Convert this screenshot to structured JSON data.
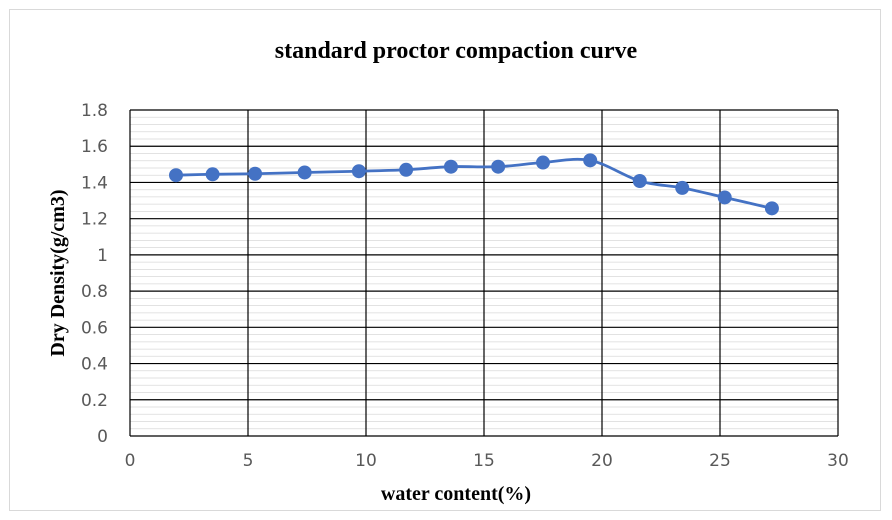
{
  "chart_data": {
    "type": "scatter",
    "title": "standard proctor compaction curve",
    "xlabel": "water content(%)",
    "ylabel": "Dry Density(g/cm3)",
    "xlim": [
      0,
      30
    ],
    "ylim": [
      0,
      1.8
    ],
    "x_ticks": [
      0,
      5,
      10,
      15,
      20,
      25,
      30
    ],
    "y_ticks": [
      0,
      0.2,
      0.4,
      0.6,
      0.8,
      1,
      1.2,
      1.4,
      1.6,
      1.8
    ],
    "x_tick_labels": [
      "0",
      "5",
      "10",
      "15",
      "20",
      "25",
      "30"
    ],
    "y_tick_labels": [
      "0",
      "0.2",
      "0.4",
      "0.6",
      "0.8",
      "1",
      "1.2",
      "1.4",
      "1.6",
      "1.8"
    ],
    "grid": true,
    "legend": "none",
    "smooth_line": true,
    "series": [
      {
        "color": "#4472c4",
        "x": [
          1.95,
          3.5,
          5.3,
          7.4,
          9.7,
          11.7,
          13.6,
          15.6,
          17.5,
          19.5,
          21.6,
          23.4,
          25.2,
          27.2
        ],
        "y": [
          1.44,
          1.445,
          1.448,
          1.455,
          1.462,
          1.47,
          1.487,
          1.487,
          1.51,
          1.522,
          1.408,
          1.37,
          1.317,
          1.257
        ]
      }
    ]
  }
}
